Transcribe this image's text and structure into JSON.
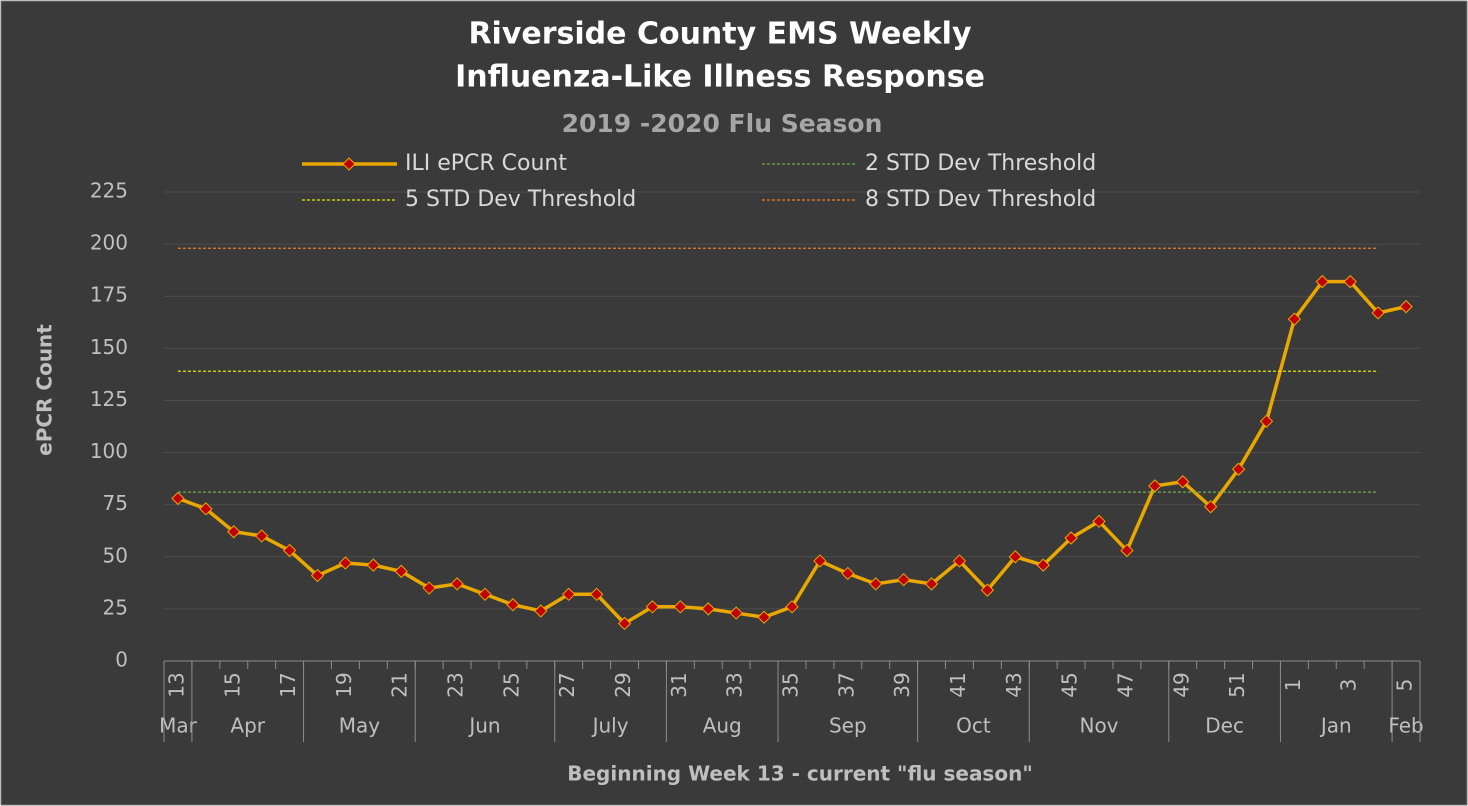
{
  "chart_data": {
    "type": "line",
    "title": [
      "Riverside County EMS Weekly",
      "Influenza-Like Illness Response"
    ],
    "subtitle": "2019 -2020 Flu Season",
    "y_label": "ePCR Count",
    "x_label": "Beginning Week 13 - current \"flu season\"",
    "categories": [
      "13",
      null,
      "15",
      null,
      "17",
      null,
      "19",
      null,
      "21",
      null,
      "23",
      null,
      "25",
      null,
      "27",
      null,
      "29",
      null,
      "31",
      null,
      "33",
      null,
      "35",
      null,
      "37",
      null,
      "39",
      null,
      "41",
      null,
      "43",
      null,
      "45",
      null,
      "47",
      null,
      "49",
      null,
      "51",
      null,
      "1",
      null,
      "3",
      null,
      "5"
    ],
    "groups": [
      {
        "label": "Mar",
        "count": 1
      },
      {
        "label": "Apr",
        "count": 4
      },
      {
        "label": "May",
        "count": 4
      },
      {
        "label": "Jun",
        "count": 5
      },
      {
        "label": "July",
        "count": 4
      },
      {
        "label": "Aug",
        "count": 4
      },
      {
        "label": "Sep",
        "count": 5
      },
      {
        "label": "Oct",
        "count": 4
      },
      {
        "label": "Nov",
        "count": 5
      },
      {
        "label": "Dec",
        "count": 4
      },
      {
        "label": "Jan",
        "count": 4
      },
      {
        "label": "Feb",
        "count": 1
      }
    ],
    "series": [
      {
        "name": "ILI ePCR Count",
        "color": "#e8a800",
        "marker_color": "#c00000",
        "style": "solid",
        "values": [
          78,
          73,
          62,
          60,
          53,
          41,
          47,
          46,
          43,
          35,
          37,
          32,
          27,
          24,
          32,
          32,
          18,
          26,
          26,
          25,
          23,
          21,
          26,
          48,
          42,
          37,
          39,
          37,
          48,
          34,
          50,
          46,
          59,
          67,
          53,
          84,
          86,
          74,
          92,
          115,
          164,
          182,
          182,
          167,
          170
        ]
      },
      {
        "name": "2 STD Dev Threshold",
        "color": "#70ad47",
        "style": "dashed",
        "values": [
          81,
          81,
          81,
          81,
          81,
          81,
          81,
          81,
          81,
          81,
          81,
          81,
          81,
          81,
          81,
          81,
          81,
          81,
          81,
          81,
          81,
          81,
          81,
          81,
          81,
          81,
          81,
          81,
          81,
          81,
          81,
          81,
          81,
          81,
          81,
          81,
          81,
          81,
          81,
          81,
          81,
          81,
          81,
          81,
          null
        ]
      },
      {
        "name": "5 STD Dev Threshold",
        "color": "#e6e600",
        "style": "dashed",
        "values": [
          139,
          139,
          139,
          139,
          139,
          139,
          139,
          139,
          139,
          139,
          139,
          139,
          139,
          139,
          139,
          139,
          139,
          139,
          139,
          139,
          139,
          139,
          139,
          139,
          139,
          139,
          139,
          139,
          139,
          139,
          139,
          139,
          139,
          139,
          139,
          139,
          139,
          139,
          139,
          139,
          139,
          139,
          139,
          139,
          null
        ]
      },
      {
        "name": "8 STD Dev Threshold",
        "color": "#ed7d31",
        "style": "dashed",
        "values": [
          198,
          198,
          198,
          198,
          198,
          198,
          198,
          198,
          198,
          198,
          198,
          198,
          198,
          198,
          198,
          198,
          198,
          198,
          198,
          198,
          198,
          198,
          198,
          198,
          198,
          198,
          198,
          198,
          198,
          198,
          198,
          198,
          198,
          198,
          198,
          198,
          198,
          198,
          198,
          198,
          198,
          198,
          198,
          198,
          null
        ]
      }
    ],
    "ylim": [
      0,
      225
    ],
    "yticks": [
      0,
      25,
      50,
      75,
      100,
      125,
      150,
      175,
      200,
      225
    ],
    "grid": true
  }
}
